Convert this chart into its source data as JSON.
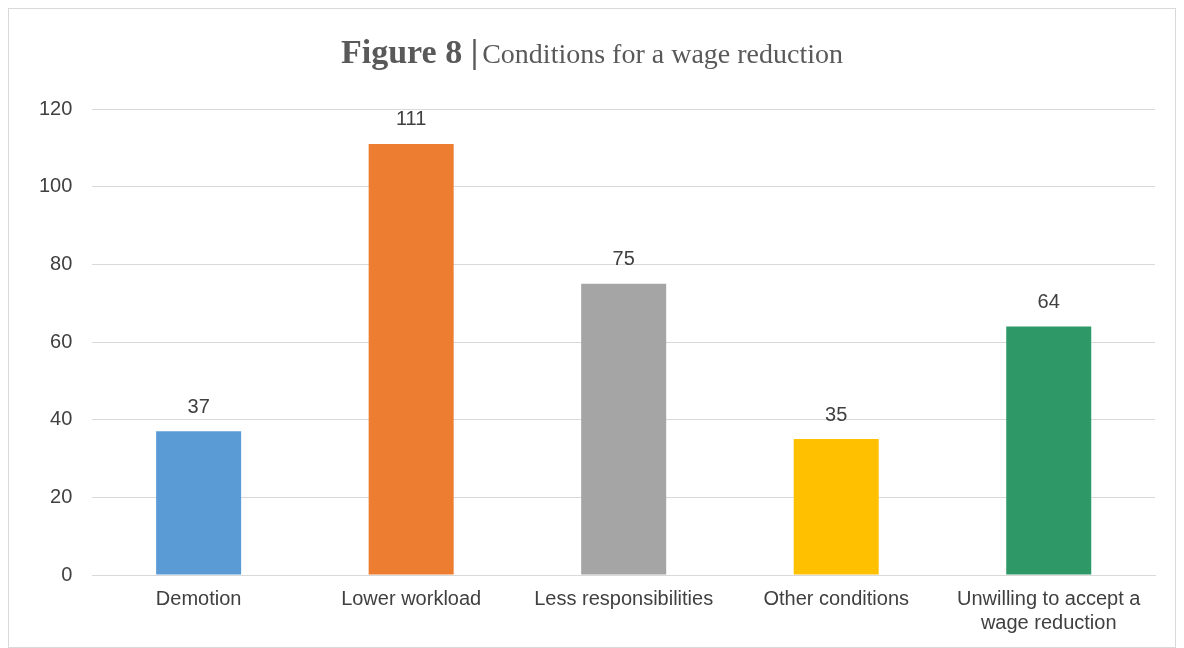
{
  "chart_data": {
    "type": "bar",
    "title": "Figure 8 |",
    "subtitle": "Conditions for a wage reduction",
    "categories": [
      "Demotion",
      "Lower workload",
      "Less responsibilities",
      "Other conditions",
      "Unwilling to accept a wage reduction"
    ],
    "values": [
      37,
      111,
      75,
      35,
      64
    ],
    "colors": [
      "#5b9bd5",
      "#ed7d31",
      "#a5a5a5",
      "#ffc000",
      "#2e9966"
    ],
    "ylim": [
      0,
      120
    ],
    "yticks": [
      0,
      20,
      40,
      60,
      80,
      100,
      120
    ],
    "grid": "y",
    "data_labels": true,
    "legend": false
  }
}
